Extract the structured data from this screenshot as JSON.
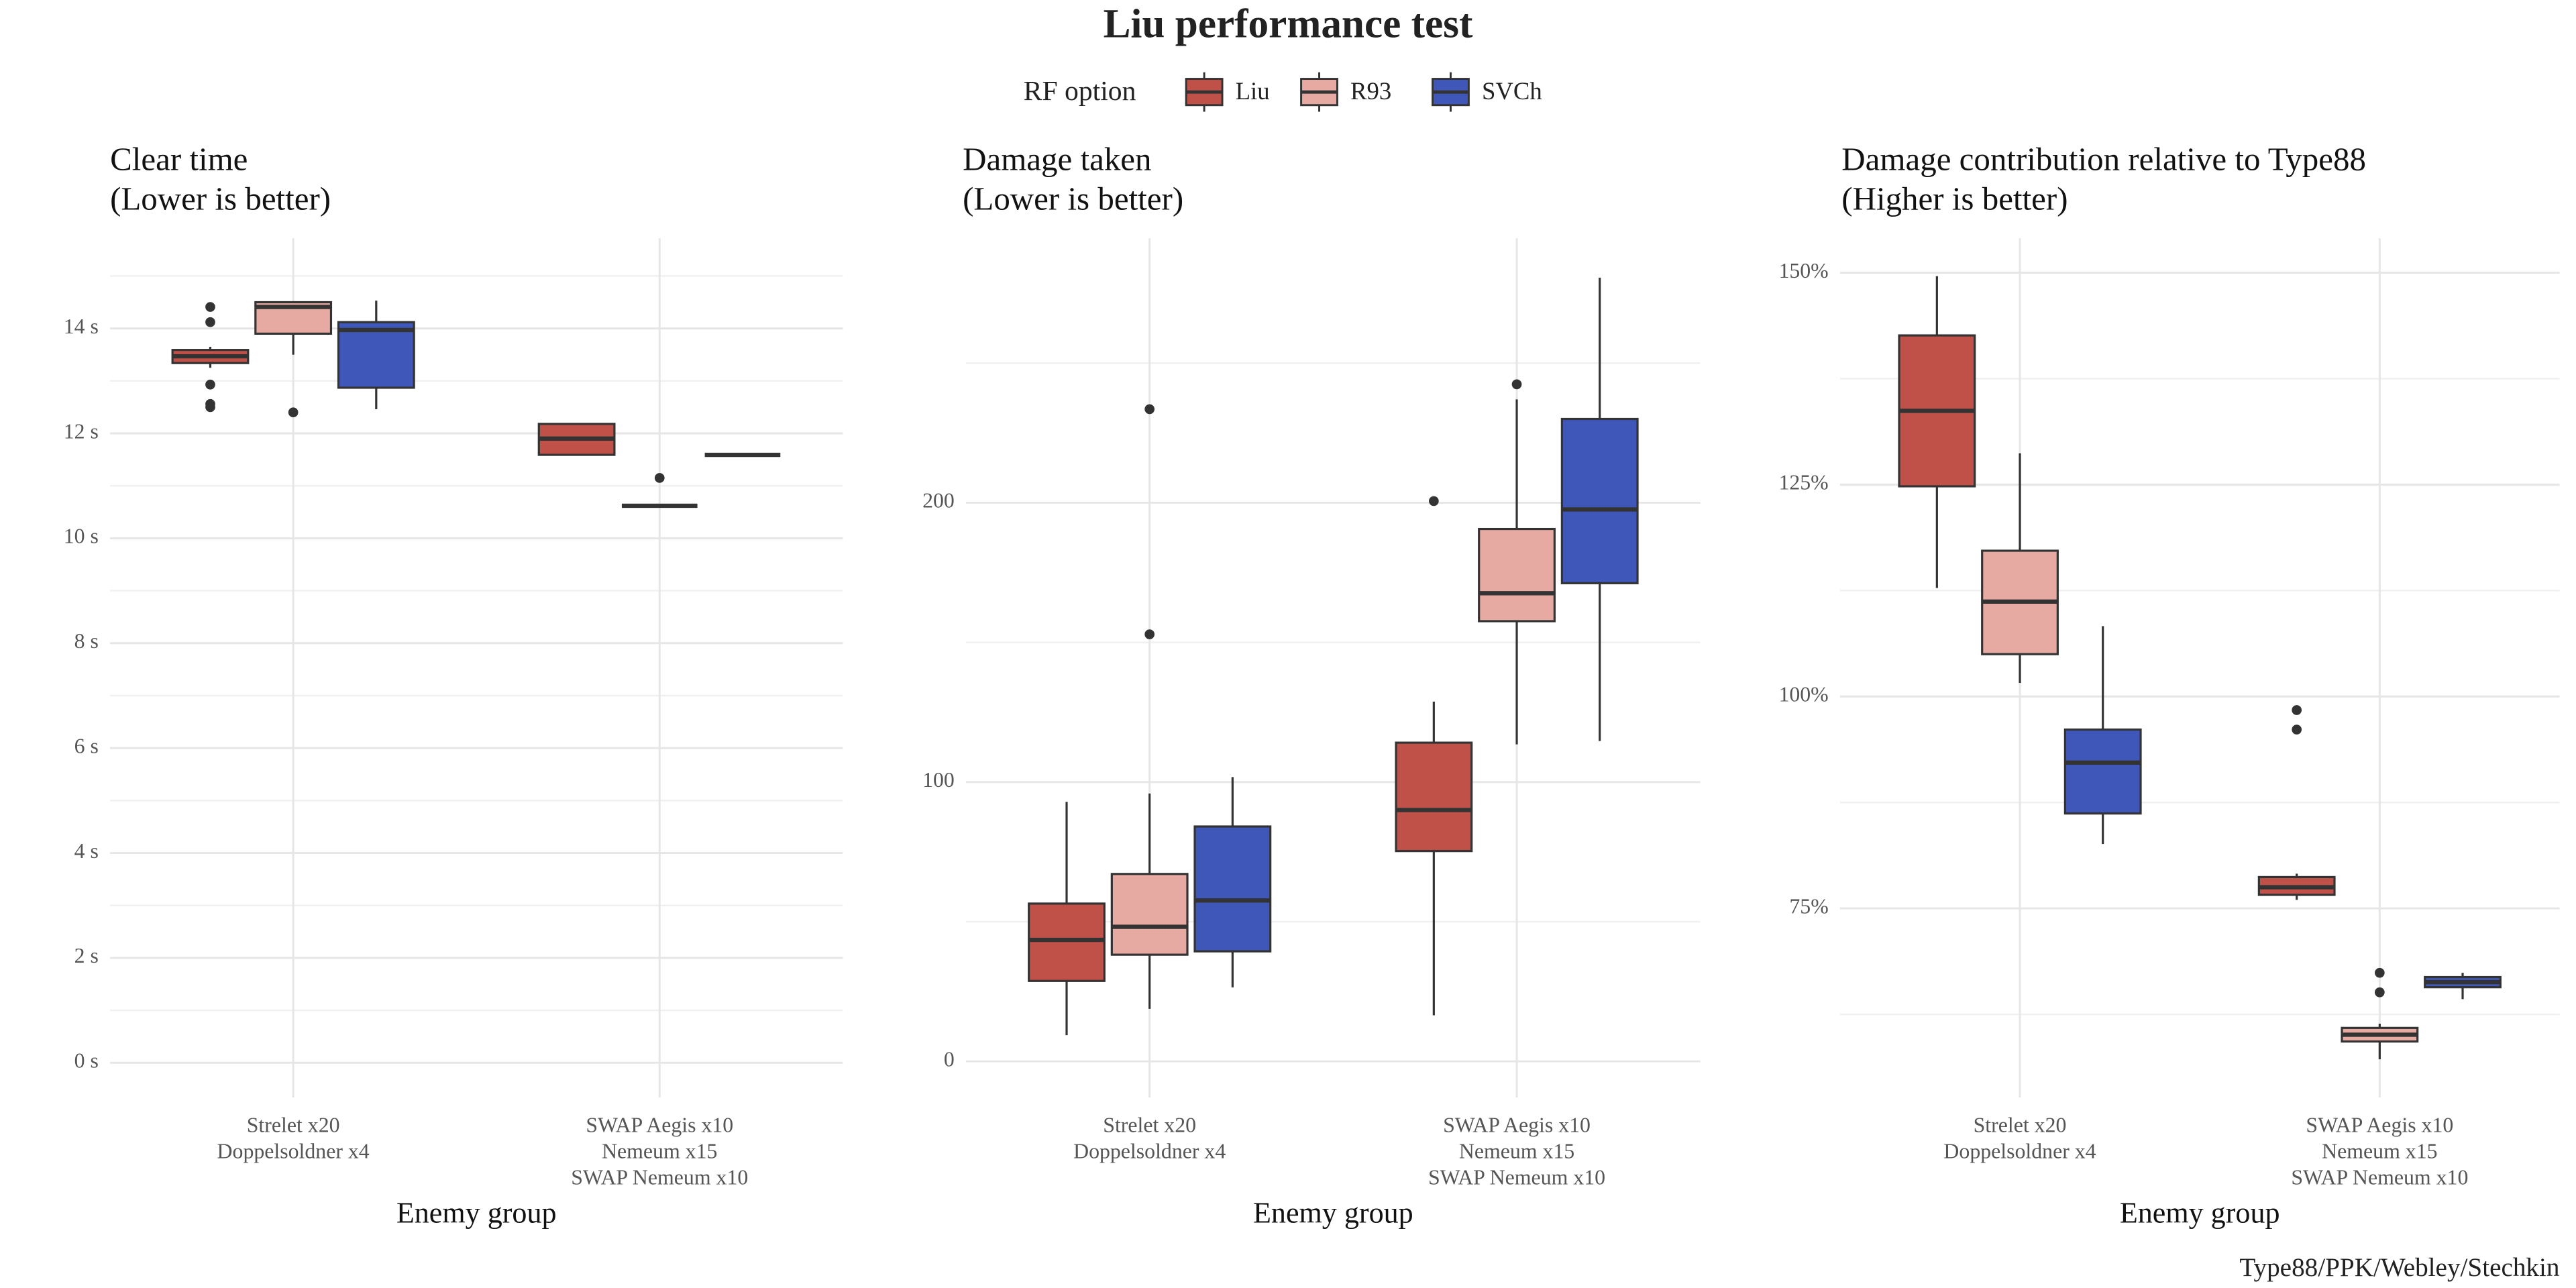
{
  "title": "Liu performance test",
  "legend": {
    "title": "RF option",
    "entries": [
      {
        "name": "Liu",
        "color": "#bf5148"
      },
      {
        "name": "R93",
        "color": "#e6aaa2"
      },
      {
        "name": "SVCh",
        "color": "#3e57b8"
      }
    ]
  },
  "caption": "Type88/PPK/Webley/Stechkin",
  "chart_data": [
    {
      "type": "box",
      "title": "Clear time",
      "subtitle": "(Lower is better)",
      "xlabel": "Enemy group",
      "categories": [
        [
          "Strelet x20",
          "Doppelsoldner x4"
        ],
        [
          "SWAP Aegis x10",
          "Nemeum x15",
          "SWAP Nemeum x10"
        ]
      ],
      "ylim": [
        -0.66,
        15.72
      ],
      "yticks": [
        {
          "value": 0,
          "label": "0 s"
        },
        {
          "value": 2,
          "label": "2 s"
        },
        {
          "value": 4,
          "label": "4 s"
        },
        {
          "value": 6,
          "label": "6 s"
        },
        {
          "value": 8,
          "label": "8 s"
        },
        {
          "value": 10,
          "label": "10 s"
        },
        {
          "value": 12,
          "label": "12 s"
        },
        {
          "value": 14,
          "label": "14 s"
        }
      ],
      "grid": true,
      "minor_grid": true,
      "series": [
        {
          "values": [
            {
              "min": 13.25,
              "q1": 13.34,
              "median": 13.47,
              "q3": 13.59,
              "max": 13.65,
              "outliers": [
                14.41,
                14.12,
                12.93,
                12.56,
                12.5
              ]
            },
            {
              "min": 11.59,
              "q1": 11.59,
              "median": 11.9,
              "q3": 12.18,
              "max": 12.18,
              "outliers": []
            }
          ]
        },
        {
          "values": [
            {
              "min": 13.5,
              "q1": 13.9,
              "median": 14.41,
              "q3": 14.5,
              "max": 14.5,
              "outliers": [
                12.4
              ]
            },
            {
              "min": 10.62,
              "q1": 10.62,
              "median": 10.62,
              "q3": 10.62,
              "max": 10.62,
              "outliers": [
                11.15
              ]
            }
          ]
        },
        {
          "values": [
            {
              "min": 12.46,
              "q1": 12.87,
              "median": 13.97,
              "q3": 14.12,
              "max": 14.53,
              "outliers": []
            },
            {
              "min": 11.59,
              "q1": 11.59,
              "median": 11.59,
              "q3": 11.59,
              "max": 11.59,
              "outliers": []
            }
          ]
        }
      ]
    },
    {
      "type": "box",
      "title": "Damage taken",
      "subtitle": "(Lower is better)",
      "xlabel": "Enemy group",
      "categories": [
        [
          "Strelet x20",
          "Doppelsoldner x4"
        ],
        [
          "SWAP Aegis x10",
          "Nemeum x15",
          "SWAP Nemeum x10"
        ]
      ],
      "ylim": [
        -12.9,
        294.7
      ],
      "yticks": [
        0,
        100,
        200
      ],
      "grid": true,
      "minor_grid": true,
      "series": [
        {
          "values": [
            {
              "min": 9.4,
              "q1": 28.8,
              "median": 43.5,
              "q3": 56.5,
              "max": 92.9,
              "outliers": []
            },
            {
              "min": 16.5,
              "q1": 75.3,
              "median": 90,
              "q3": 114.1,
              "max": 128.8,
              "outliers": [
                200.6
              ]
            }
          ]
        },
        {
          "values": [
            {
              "min": 18.8,
              "q1": 38.2,
              "median": 48.2,
              "q3": 67.1,
              "max": 95.9,
              "outliers": [
                152.9,
                233.5
              ]
            },
            {
              "min": 113.5,
              "q1": 157.6,
              "median": 167.6,
              "q3": 190.6,
              "max": 237,
              "outliers": [
                242.4
              ]
            }
          ]
        },
        {
          "values": [
            {
              "min": 26.5,
              "q1": 39.4,
              "median": 57.6,
              "q3": 84.1,
              "max": 101.8,
              "outliers": []
            },
            {
              "min": 114.7,
              "q1": 171.2,
              "median": 197.6,
              "q3": 230,
              "max": 280.6,
              "outliers": []
            }
          ]
        }
      ]
    },
    {
      "type": "box",
      "title": "Damage contribution relative to Type88",
      "subtitle": "(Higher is better)",
      "xlabel": "Enemy group",
      "categories": [
        [
          "Strelet x20",
          "Doppelsoldner x4"
        ],
        [
          "SWAP Aegis x10",
          "Nemeum x15",
          "SWAP Nemeum x10"
        ]
      ],
      "ylim": [
        52.7,
        154.07
      ],
      "yticks": [
        {
          "value": 75,
          "label": "75%"
        },
        {
          "value": 100,
          "label": "100%"
        },
        {
          "value": 125,
          "label": "125%"
        },
        {
          "value": 150,
          "label": "150%"
        }
      ],
      "grid": true,
      "minor_grid": true,
      "series": [
        {
          "values": [
            {
              "min": 112.8,
              "q1": 124.8,
              "median": 133.7,
              "q3": 142.6,
              "max": 149.6,
              "outliers": []
            },
            {
              "min": 76,
              "q1": 76.6,
              "median": 77.5,
              "q3": 78.7,
              "max": 79.1,
              "outliers": [
                98.4,
                96.1
              ]
            }
          ]
        },
        {
          "values": [
            {
              "min": 101.6,
              "q1": 105,
              "median": 111.2,
              "q3": 117.2,
              "max": 128.7,
              "outliers": []
            },
            {
              "min": 57.2,
              "q1": 59.3,
              "median": 60.1,
              "q3": 60.9,
              "max": 61.4,
              "outliers": [
                67.4,
                65.1
              ]
            }
          ]
        },
        {
          "values": [
            {
              "min": 82.6,
              "q1": 86.2,
              "median": 92.2,
              "q3": 96.1,
              "max": 108.3,
              "outliers": []
            },
            {
              "min": 64.3,
              "q1": 65.7,
              "median": 66.3,
              "q3": 66.9,
              "max": 67.4,
              "outliers": []
            }
          ]
        }
      ]
    }
  ]
}
